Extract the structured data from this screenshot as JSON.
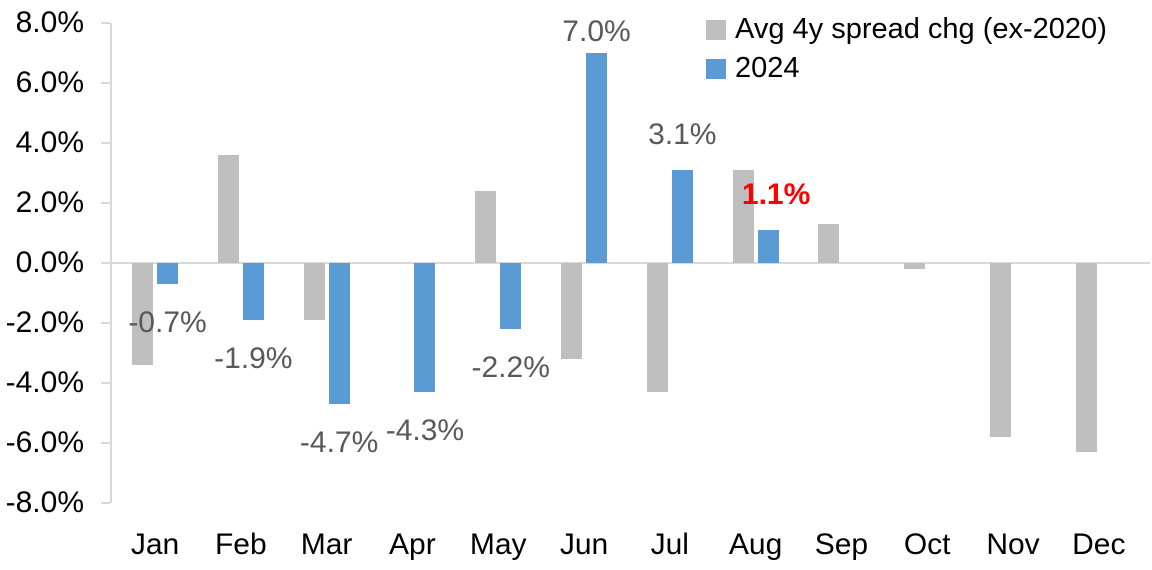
{
  "chart_data": {
    "type": "bar",
    "title": "",
    "categories": [
      "Jan",
      "Feb",
      "Mar",
      "Apr",
      "May",
      "Jun",
      "Jul",
      "Aug",
      "Sep",
      "Oct",
      "Nov",
      "Dec"
    ],
    "y_axis": {
      "min": -8,
      "max": 8,
      "step": 2,
      "tick_labels": [
        "8.0%",
        "6.0%",
        "4.0%",
        "2.0%",
        "0.0%",
        "-2.0%",
        "-4.0%",
        "-6.0%",
        "-8.0%"
      ],
      "format": "percent"
    },
    "grid": "zero-line-only",
    "legend_position": "top-right",
    "series": [
      {
        "name": "Avg 4y spread chg (ex-2020)",
        "color": "#BFBFBF",
        "values": [
          -3.4,
          3.6,
          -1.9,
          0.0,
          2.4,
          -3.2,
          -4.3,
          3.1,
          1.3,
          -0.2,
          -5.8,
          -6.3
        ]
      },
      {
        "name": "2024",
        "color": "#5B9BD5",
        "values": [
          -0.7,
          -1.9,
          -4.7,
          -4.3,
          -2.2,
          7.0,
          3.1,
          1.1,
          null,
          null,
          null,
          null
        ],
        "data_labels": [
          {
            "text": "-0.7%",
            "color": "#595959",
            "bold": false,
            "dx": 0
          },
          {
            "text": "-1.9%",
            "color": "#595959",
            "bold": false,
            "dx": 0
          },
          {
            "text": "-4.7%",
            "color": "#595959",
            "bold": false,
            "dx": 0
          },
          {
            "text": "-4.3%",
            "color": "#595959",
            "bold": false,
            "dx": 0
          },
          {
            "text": "-2.2%",
            "color": "#595959",
            "bold": false,
            "dx": 0
          },
          {
            "text": "7.0%",
            "color": "#595959",
            "bold": false,
            "dx": 0
          },
          {
            "text": "3.1%",
            "color": "#595959",
            "bold": false,
            "dx": 0
          },
          {
            "text": "1.1%",
            "color": "#FF0000",
            "bold": true,
            "dx": 8
          },
          null,
          null,
          null,
          null
        ]
      }
    ],
    "colors": {
      "axis_line": "#D9D9D9",
      "zero_line": "#D9D9D9",
      "axis_text": "#000000",
      "label_text": "#595959",
      "highlight_text": "#FF0000"
    }
  }
}
